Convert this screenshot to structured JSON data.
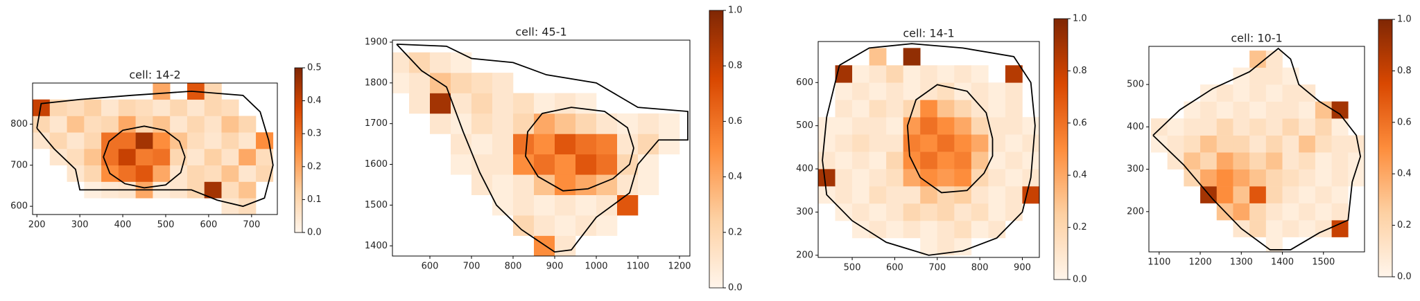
{
  "chart_data": [
    {
      "type": "heatmap",
      "title": "cell: 14-2",
      "x": [
        210,
        250,
        290,
        330,
        370,
        410,
        450,
        490,
        530,
        570,
        610,
        650,
        690,
        730
      ],
      "y": [
        600,
        640,
        680,
        720,
        760,
        800,
        840,
        880
      ],
      "z": [
        [
          null,
          null,
          null,
          null,
          null,
          null,
          null,
          null,
          null,
          null,
          null,
          0.05,
          0.08,
          null
        ],
        [
          null,
          null,
          null,
          0.02,
          0.04,
          0.05,
          0.2,
          0.03,
          0.05,
          0.1,
          0.45,
          0.08,
          0.15,
          null
        ],
        [
          null,
          null,
          0.05,
          0.1,
          0.25,
          0.3,
          0.35,
          0.2,
          0.05,
          0.1,
          0.08,
          0.15,
          0.05,
          0.1
        ],
        [
          null,
          0.05,
          0.08,
          0.15,
          0.3,
          0.4,
          0.28,
          0.3,
          0.1,
          0.05,
          0.12,
          0.06,
          0.2,
          0.08
        ],
        [
          0.05,
          0.1,
          0.05,
          0.1,
          0.3,
          0.3,
          0.45,
          0.25,
          0.15,
          0.08,
          0.05,
          0.1,
          0.05,
          0.25
        ],
        [
          0.1,
          0.05,
          0.15,
          0.08,
          0.1,
          0.2,
          0.1,
          0.15,
          0.05,
          0.1,
          0.06,
          0.15,
          0.1,
          null
        ],
        [
          0.4,
          0.1,
          0.08,
          0.12,
          0.05,
          0.1,
          0.08,
          0.05,
          0.1,
          0.05,
          0.1,
          0.08,
          null,
          null
        ],
        [
          null,
          null,
          null,
          null,
          null,
          null,
          null,
          0.2,
          null,
          0.35,
          0.1,
          null,
          null,
          null
        ]
      ],
      "xlim": [
        190,
        760
      ],
      "ylim": [
        580,
        900
      ],
      "xticks": [
        200,
        300,
        400,
        500,
        600,
        700
      ],
      "yticks": [
        600,
        700,
        800
      ],
      "clim": [
        0,
        0.5
      ],
      "cticks": [
        {
          "value": 0,
          "label": "0.0"
        },
        0.1,
        0.2,
        0.3,
        0.4,
        0.5
      ],
      "colormap": [
        "#fff5eb",
        "#fdd0a2",
        "#fd8d3c",
        "#d94801",
        "#7f2704"
      ],
      "cell_outline": {
        "x": [
          200,
          210,
          300,
          420,
          560,
          680,
          720,
          740,
          750,
          730,
          680,
          620,
          560,
          300,
          290,
          240,
          200
        ],
        "y": [
          790,
          850,
          860,
          870,
          880,
          870,
          830,
          760,
          700,
          620,
          600,
          615,
          640,
          640,
          690,
          740,
          790
        ]
      },
      "nucleus_outline": {
        "x": [
          545,
          532,
          498,
          450,
          400,
          368,
          355,
          370,
          405,
          450,
          500,
          535,
          545
        ],
        "y": [
          720,
          758,
          785,
          795,
          785,
          758,
          720,
          680,
          655,
          645,
          652,
          682,
          720
        ]
      }
    },
    {
      "type": "heatmap",
      "title": "cell: 45-1",
      "x": [
        525,
        575,
        625,
        675,
        725,
        775,
        825,
        875,
        925,
        975,
        1025,
        1075,
        1125,
        1175
      ],
      "y": [
        1400,
        1450,
        1500,
        1550,
        1600,
        1650,
        1700,
        1750,
        1800,
        1850
      ],
      "z": [
        [
          null,
          null,
          null,
          null,
          null,
          null,
          null,
          0.5,
          0.1,
          null,
          null,
          null,
          null,
          null
        ],
        [
          null,
          null,
          null,
          null,
          null,
          null,
          0.2,
          0.1,
          0.05,
          0.1,
          0.05,
          null,
          null,
          null
        ],
        [
          null,
          null,
          null,
          null,
          null,
          0.05,
          0.1,
          0.05,
          0.1,
          0.05,
          0.1,
          0.7,
          null,
          null
        ],
        [
          null,
          null,
          null,
          null,
          0.1,
          0.05,
          0.1,
          0.3,
          0.5,
          0.4,
          0.3,
          0.1,
          0.05,
          null
        ],
        [
          null,
          null,
          null,
          0.05,
          0.1,
          0.1,
          0.5,
          0.6,
          0.5,
          0.7,
          0.6,
          0.2,
          0.05,
          null
        ],
        [
          null,
          null,
          null,
          0.1,
          0.05,
          0.1,
          0.6,
          0.5,
          0.7,
          0.6,
          0.55,
          0.1,
          0.2,
          0.05
        ],
        [
          null,
          null,
          0.1,
          0.05,
          0.15,
          0.1,
          0.2,
          0.4,
          0.3,
          0.2,
          0.1,
          0.05,
          0.1,
          0.05
        ],
        [
          null,
          0.1,
          0.9,
          0.1,
          0.2,
          0.1,
          0.15,
          0.05,
          0.1,
          0.05,
          null,
          null,
          null,
          null
        ],
        [
          0.05,
          0.1,
          0.3,
          0.2,
          0.15,
          0.1,
          null,
          null,
          null,
          null,
          null,
          null,
          null,
          null
        ],
        [
          0.1,
          0.2,
          0.1,
          0.05,
          null,
          null,
          null,
          null,
          null,
          null,
          null,
          null,
          null,
          null
        ]
      ],
      "xlim": [
        510,
        1225
      ],
      "ylim": [
        1375,
        1905
      ],
      "xticks": [
        600,
        700,
        800,
        900,
        1000,
        1100,
        1200
      ],
      "yticks": [
        1400,
        1500,
        1600,
        1700,
        1800,
        1900
      ],
      "clim": [
        0,
        1
      ],
      "cticks": [
        {
          "value": 0,
          "label": "0.0"
        },
        0.2,
        0.4,
        0.6,
        0.8,
        {
          "value": 1,
          "label": "1.0"
        }
      ],
      "colormap": [
        "#fff5eb",
        "#fdd0a2",
        "#fd8d3c",
        "#d94801",
        "#7f2704"
      ],
      "cell_outline": {
        "x": [
          520,
          640,
          700,
          800,
          880,
          1000,
          1100,
          1220,
          1220,
          1150,
          1100,
          1080,
          1000,
          940,
          900,
          820,
          760,
          720,
          680,
          640,
          580,
          520
        ],
        "y": [
          1895,
          1890,
          1860,
          1850,
          1820,
          1800,
          1740,
          1730,
          1660,
          1660,
          1600,
          1530,
          1470,
          1390,
          1385,
          1440,
          1500,
          1580,
          1680,
          1790,
          1830,
          1895
        ]
      },
      "nucleus_outline": {
        "x": [
          1090,
          1075,
          1020,
          940,
          870,
          835,
          830,
          860,
          920,
          980,
          1040,
          1080,
          1090
        ],
        "y": [
          1640,
          1690,
          1730,
          1740,
          1725,
          1680,
          1620,
          1570,
          1535,
          1540,
          1565,
          1600,
          1640
        ]
      }
    },
    {
      "type": "heatmap",
      "title": "cell: 14-1",
      "x": [
        440,
        480,
        520,
        560,
        600,
        640,
        680,
        720,
        760,
        800,
        840,
        880,
        920
      ],
      "y": [
        220,
        260,
        300,
        340,
        380,
        420,
        460,
        500,
        540,
        580,
        620,
        660
      ],
      "z": [
        [
          null,
          null,
          null,
          null,
          null,
          null,
          0.05,
          0.1,
          0.05,
          null,
          null,
          null,
          null
        ],
        [
          null,
          null,
          0.05,
          0.1,
          0.05,
          0.1,
          0.05,
          0.1,
          0.15,
          0.05,
          0.1,
          null,
          null
        ],
        [
          null,
          0.05,
          0.1,
          0.05,
          0.1,
          0.2,
          0.15,
          0.2,
          0.1,
          0.15,
          0.05,
          0.1,
          null
        ],
        [
          0.05,
          0.1,
          0.05,
          0.15,
          0.1,
          0.1,
          0.3,
          0.2,
          0.25,
          0.1,
          0.05,
          0.1,
          0.8
        ],
        [
          0.9,
          0.1,
          0.05,
          0.1,
          0.15,
          0.4,
          0.5,
          0.45,
          0.5,
          0.2,
          0.1,
          0.05,
          0.1
        ],
        [
          0.1,
          0.05,
          0.1,
          0.05,
          0.2,
          0.5,
          0.6,
          0.5,
          0.55,
          0.3,
          0.05,
          0.1,
          0.05
        ],
        [
          0.05,
          0.1,
          0.15,
          0.1,
          0.1,
          0.55,
          0.5,
          0.6,
          0.5,
          0.4,
          0.1,
          0.05,
          0.1
        ],
        [
          0.05,
          0.05,
          0.1,
          0.1,
          0.05,
          0.45,
          0.6,
          0.5,
          0.4,
          0.2,
          0.1,
          0.1,
          0.05
        ],
        [
          null,
          0.1,
          0.05,
          0.15,
          0.1,
          0.2,
          0.5,
          0.3,
          0.2,
          0.1,
          0.05,
          0.1,
          null
        ],
        [
          null,
          0.05,
          0.1,
          0.05,
          0.1,
          0.05,
          0.1,
          0.15,
          0.05,
          0.1,
          0.05,
          0.1,
          null
        ],
        [
          null,
          0.9,
          0.05,
          0.1,
          0.2,
          0.05,
          0.1,
          0.05,
          0.1,
          0.05,
          null,
          0.85,
          null
        ],
        [
          null,
          null,
          null,
          0.3,
          null,
          0.95,
          null,
          null,
          null,
          null,
          null,
          null,
          null
        ]
      ],
      "xlim": [
        420,
        940
      ],
      "ylim": [
        195,
        695
      ],
      "xticks": [
        500,
        600,
        700,
        800,
        900
      ],
      "yticks": [
        200,
        300,
        400,
        500,
        600
      ],
      "clim": [
        0,
        1
      ],
      "cticks": [
        {
          "value": 0,
          "label": "0.0"
        },
        0.2,
        0.4,
        0.6,
        0.8,
        {
          "value": 1,
          "label": "1.0"
        }
      ],
      "colormap": [
        "#fff5eb",
        "#fdd0a2",
        "#fd8d3c",
        "#d94801",
        "#7f2704"
      ],
      "cell_outline": {
        "x": [
          470,
          540,
          640,
          760,
          880,
          920,
          930,
          920,
          900,
          840,
          760,
          680,
          580,
          500,
          440,
          430,
          440,
          470
        ],
        "y": [
          640,
          680,
          690,
          680,
          660,
          600,
          500,
          380,
          300,
          240,
          210,
          200,
          230,
          280,
          340,
          420,
          520,
          640
        ]
      },
      "nucleus_outline": {
        "x": [
          830,
          815,
          770,
          700,
          650,
          630,
          635,
          660,
          710,
          770,
          810,
          830,
          830
        ],
        "y": [
          470,
          530,
          580,
          595,
          560,
          500,
          430,
          380,
          345,
          350,
          390,
          430,
          470
        ]
      }
    },
    {
      "type": "heatmap",
      "title": "cell: 10-1",
      "x": [
        1100,
        1140,
        1180,
        1220,
        1260,
        1300,
        1340,
        1380,
        1420,
        1460,
        1500,
        1540,
        1580
      ],
      "y": [
        120,
        160,
        200,
        240,
        280,
        320,
        360,
        400,
        440,
        480,
        520,
        560
      ],
      "z": [
        [
          null,
          null,
          null,
          null,
          null,
          null,
          null,
          0.05,
          null,
          null,
          null,
          null,
          null
        ],
        [
          null,
          null,
          null,
          null,
          null,
          0.1,
          0.2,
          0.05,
          0.1,
          0.05,
          0.1,
          0.8,
          null
        ],
        [
          null,
          null,
          null,
          null,
          0.3,
          0.4,
          0.2,
          0.1,
          0.05,
          0.1,
          0.05,
          0.1,
          null
        ],
        [
          null,
          null,
          null,
          0.9,
          0.5,
          0.3,
          0.7,
          0.2,
          0.1,
          0.05,
          0.1,
          0.05,
          null
        ],
        [
          null,
          null,
          0.2,
          0.4,
          0.5,
          0.4,
          0.3,
          0.2,
          0.15,
          0.1,
          0.05,
          0.1,
          0.05
        ],
        [
          null,
          0.1,
          0.3,
          0.2,
          0.4,
          0.3,
          0.2,
          0.3,
          0.1,
          0.15,
          0.05,
          0.1,
          0.05
        ],
        [
          0.05,
          0.1,
          0.15,
          0.3,
          0.2,
          0.2,
          0.1,
          0.2,
          0.1,
          0.3,
          0.15,
          0.1,
          0.1
        ],
        [
          0.1,
          0.05,
          0.1,
          0.1,
          0.2,
          0.1,
          0.15,
          0.1,
          0.2,
          0.1,
          0.2,
          0.05,
          null
        ],
        [
          null,
          null,
          0.05,
          0.1,
          0.05,
          0.1,
          0.05,
          0.1,
          0.1,
          0.05,
          0.3,
          0.9,
          null
        ],
        [
          null,
          null,
          null,
          0.05,
          0.1,
          0.05,
          0.1,
          0.05,
          0.1,
          0.1,
          null,
          null,
          null
        ],
        [
          null,
          null,
          null,
          null,
          null,
          0.05,
          0.1,
          0.1,
          0.05,
          null,
          null,
          null,
          null
        ],
        [
          null,
          null,
          null,
          null,
          null,
          null,
          0.3,
          0.1,
          null,
          null,
          null,
          null,
          null
        ]
      ],
      "xlim": [
        1075,
        1600
      ],
      "ylim": [
        105,
        590
      ],
      "xticks": [
        1100,
        1200,
        1300,
        1400,
        1500
      ],
      "yticks": [
        200,
        300,
        400,
        500
      ],
      "clim": [
        0,
        1
      ],
      "cticks": [
        {
          "value": 0,
          "label": "0.0"
        },
        0.2,
        0.4,
        0.6,
        0.8,
        {
          "value": 1,
          "label": "1.0"
        }
      ],
      "colormap": [
        "#fff5eb",
        "#fdd0a2",
        "#fd8d3c",
        "#d94801",
        "#7f2704"
      ],
      "cell_outline": {
        "x": [
          1085,
          1150,
          1230,
          1320,
          1390,
          1420,
          1440,
          1490,
          1540,
          1580,
          1590,
          1570,
          1560,
          1490,
          1420,
          1370,
          1300,
          1230,
          1160,
          1085
        ],
        "y": [
          380,
          440,
          490,
          530,
          585,
          560,
          500,
          460,
          430,
          380,
          330,
          270,
          180,
          150,
          110,
          110,
          160,
          230,
          310,
          380
        ]
      }
    }
  ]
}
